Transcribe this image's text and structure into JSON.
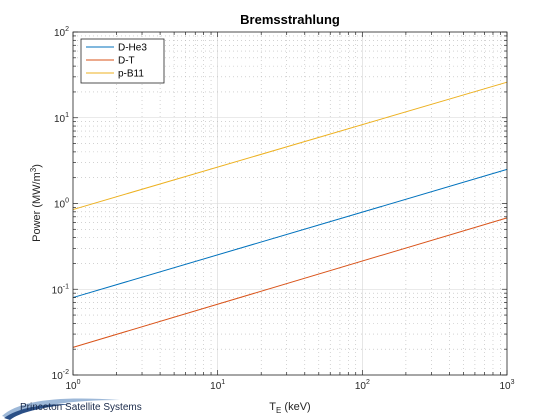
{
  "footer": {
    "brand_text": "Princeton Satellite Systems",
    "logo_icon": "swoosh-logo-icon"
  },
  "chart_data": {
    "type": "line",
    "title": "Bremsstrahlung",
    "xlabel_main": "T",
    "xlabel_sub": "E",
    "xlabel_rest": " (keV)",
    "ylabel_main": "Power (MW/m",
    "ylabel_sup": "3",
    "ylabel_end": ")",
    "xscale": "log",
    "yscale": "log",
    "xlim": [
      1,
      1000
    ],
    "ylim": [
      0.01,
      100
    ],
    "x_ticks": [
      {
        "base": "10",
        "exp": "0"
      },
      {
        "base": "10",
        "exp": "1"
      },
      {
        "base": "10",
        "exp": "2"
      },
      {
        "base": "10",
        "exp": "3"
      }
    ],
    "y_ticks": [
      {
        "base": "10",
        "exp": "-2"
      },
      {
        "base": "10",
        "exp": "-1"
      },
      {
        "base": "10",
        "exp": "0"
      },
      {
        "base": "10",
        "exp": "1"
      },
      {
        "base": "10",
        "exp": "2"
      }
    ],
    "grid": "major and minor",
    "legend_position": "top-left",
    "series": [
      {
        "name": "D-He3",
        "color": "#0072BD",
        "x": [
          1,
          1000
        ],
        "y": [
          0.08,
          2.5
        ]
      },
      {
        "name": "D-T",
        "color": "#D95319",
        "x": [
          1,
          1000
        ],
        "y": [
          0.021,
          0.68
        ]
      },
      {
        "name": "p-B11",
        "color": "#EDB120",
        "x": [
          1,
          1000
        ],
        "y": [
          0.85,
          26
        ]
      }
    ]
  }
}
